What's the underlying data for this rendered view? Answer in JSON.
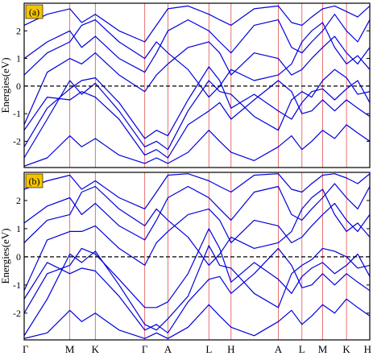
{
  "chart_data": [
    {
      "type": "line",
      "panel_label": "(a)",
      "ylabel": "Energies(eV)",
      "ylim": [
        -2.95,
        3.0
      ],
      "y_ticks": [
        -2,
        -1,
        0,
        1,
        2
      ],
      "fermi_level": 0,
      "kpath_labels": [
        "Γ",
        "M",
        "K",
        "Γ",
        "A",
        "L",
        "H",
        "A",
        "L",
        "M",
        "K",
        "H"
      ],
      "kpath_positions": [
        0,
        0.1588,
        0.2475,
        0.4194,
        0.5,
        0.6425,
        0.7196,
        0.8838,
        0.9661,
        1.0381,
        1.1211,
        1.2021
      ],
      "band_color": "#0000dd",
      "kline_color": "#e05050",
      "series": [
        {
          "x": [
            0,
            0.08,
            0.1588,
            0.2,
            0.2475,
            0.33,
            0.4194,
            0.46,
            0.5,
            0.57,
            0.6425,
            0.68,
            0.7196,
            0.8,
            0.8838,
            0.93,
            0.9661,
            1.0,
            1.0381,
            1.08,
            1.1211,
            1.16,
            1.2021
          ],
          "y": [
            -2.6,
            -1.2,
            0.2,
            -0.3,
            0.1,
            -0.9,
            -2.2,
            -2.0,
            -2.3,
            -0.9,
            0.2,
            -0.2,
            -0.3,
            -1.1,
            -1.6,
            -0.5,
            -0.2,
            -0.4,
            0.2,
            0.6,
            0.3,
            -0.3,
            -0.2
          ]
        },
        {
          "x": [
            0,
            0.08,
            0.1588,
            0.2,
            0.2475,
            0.33,
            0.4194,
            0.46,
            0.5,
            0.57,
            0.6425,
            0.68,
            0.7196,
            0.8,
            0.8838,
            0.93,
            0.9661,
            1.0,
            1.0381,
            1.08,
            1.1211,
            1.16,
            1.2021
          ],
          "y": [
            -2.2,
            -0.8,
            -0.1,
            0.2,
            0.3,
            -0.6,
            -1.9,
            -1.6,
            -1.8,
            -0.5,
            0.7,
            0.2,
            -0.8,
            -0.3,
            -0.9,
            -1.2,
            -0.6,
            -0.2,
            -0.1,
            -0.5,
            -0.1,
            0.2,
            -0.6
          ]
        },
        {
          "x": [
            0,
            0.08,
            0.1588,
            0.2,
            0.2475,
            0.33,
            0.4194,
            0.46,
            0.5,
            0.57,
            0.6425,
            0.68,
            0.7196,
            0.8,
            0.8838,
            0.93,
            0.9661,
            1.0,
            1.0381,
            1.08,
            1.1211,
            1.16,
            1.2021
          ],
          "y": [
            -1.6,
            -0.4,
            -0.5,
            -0.2,
            -0.4,
            -1.2,
            -2.5,
            -2.3,
            -2.6,
            -1.4,
            -0.9,
            -0.6,
            -1.2,
            -0.5,
            0.2,
            -0.2,
            -1.0,
            -0.9,
            -0.5,
            -0.9,
            -0.5,
            -0.8,
            -1.1
          ]
        },
        {
          "x": [
            0,
            0.08,
            0.1588,
            0.2,
            0.2475,
            0.33,
            0.4194,
            0.46,
            0.5,
            0.57,
            0.6425,
            0.68,
            0.7196,
            0.8,
            0.8838,
            0.93,
            0.9661,
            1.0,
            1.0381,
            1.08,
            1.1211,
            1.16,
            1.2021
          ],
          "y": [
            -1.4,
            0.5,
            1.0,
            0.8,
            1.2,
            0.4,
            -0.2,
            0.4,
            0.8,
            1.4,
            1.6,
            1.2,
            0.4,
            1.2,
            1.0,
            0.4,
            0.6,
            1.0,
            1.4,
            1.8,
            1.2,
            0.8,
            1.4
          ]
        },
        {
          "x": [
            0,
            0.08,
            0.1588,
            0.2,
            0.2475,
            0.33,
            0.4194,
            0.46,
            0.5,
            0.57,
            0.6425,
            0.68,
            0.7196,
            0.8,
            0.8838,
            0.93,
            0.9661,
            1.0,
            1.0381,
            1.08,
            1.1211,
            1.16,
            1.2021
          ],
          "y": [
            1.0,
            1.6,
            2.0,
            1.4,
            1.8,
            1.0,
            0.5,
            1.2,
            2.0,
            2.4,
            2.0,
            1.6,
            1.2,
            2.2,
            2.4,
            1.4,
            1.2,
            1.6,
            2.0,
            2.6,
            2.0,
            1.6,
            2.4
          ]
        },
        {
          "x": [
            0,
            0.08,
            0.1588,
            0.2,
            0.2475,
            0.33,
            0.4194,
            0.46,
            0.5,
            0.57,
            0.6425,
            0.68,
            0.7196,
            0.8,
            0.8838,
            0.93,
            0.9661,
            1.0,
            1.0381,
            1.08,
            1.1211,
            1.16,
            1.2021
          ],
          "y": [
            2.2,
            2.6,
            2.8,
            2.3,
            2.6,
            2.0,
            1.6,
            2.2,
            2.8,
            2.9,
            2.6,
            2.4,
            2.2,
            2.8,
            2.9,
            2.3,
            2.2,
            2.5,
            2.8,
            2.9,
            2.7,
            2.5,
            2.9
          ]
        },
        {
          "x": [
            0,
            0.08,
            0.1588,
            0.2,
            0.2475,
            0.33,
            0.4194,
            0.46,
            0.5,
            0.57,
            0.6425,
            0.68,
            0.7196,
            0.8,
            0.8838,
            0.93,
            0.9661,
            1.0,
            1.0381,
            1.08,
            1.1211,
            1.16,
            1.2021
          ],
          "y": [
            -2.9,
            -2.6,
            -1.8,
            -2.2,
            -1.9,
            -2.5,
            -2.8,
            -2.6,
            -2.8,
            -2.4,
            -1.6,
            -2.0,
            -2.4,
            -2.7,
            -2.2,
            -1.8,
            -2.3,
            -2.0,
            -1.6,
            -1.9,
            -1.4,
            -1.7,
            -2.0
          ]
        },
        {
          "x": [
            0,
            0.08,
            0.1588,
            0.2,
            0.2475,
            0.33,
            0.4194,
            0.46,
            0.5,
            0.57,
            0.6425,
            0.68,
            0.7196,
            0.8,
            0.8838,
            0.93,
            0.9661,
            1.0,
            1.0381,
            1.08,
            1.1211,
            1.16,
            1.2021
          ],
          "y": [
            0.4,
            1.2,
            1.6,
            2.2,
            2.4,
            1.6,
            1.0,
            1.6,
            1.2,
            0.6,
            -0.4,
            0.0,
            0.6,
            0.2,
            0.4,
            0.8,
            1.6,
            2.0,
            2.3,
            1.4,
            0.8,
            1.1,
            0.6
          ]
        }
      ]
    },
    {
      "type": "line",
      "panel_label": "(b)",
      "ylabel": "Energies(eV)",
      "ylim": [
        -2.95,
        3.0
      ],
      "y_ticks": [
        -2,
        -1,
        0,
        1,
        2
      ],
      "fermi_level": 0,
      "kpath_labels": [
        "Γ",
        "M",
        "K",
        "Γ",
        "A",
        "L",
        "H",
        "A",
        "L",
        "M",
        "K",
        "H"
      ],
      "kpath_positions": [
        0,
        0.1588,
        0.2475,
        0.4194,
        0.5,
        0.6425,
        0.7196,
        0.8838,
        0.9661,
        1.0381,
        1.1211,
        1.2021
      ],
      "band_color": "#0000dd",
      "kline_color": "#e05050",
      "series": [
        {
          "x": [
            0,
            0.08,
            0.1588,
            0.2,
            0.2475,
            0.33,
            0.4194,
            0.46,
            0.5,
            0.57,
            0.6425,
            0.68,
            0.7196,
            0.8,
            0.8838,
            0.93,
            0.9661,
            1.0,
            1.0381,
            1.08,
            1.1211,
            1.16,
            1.2021
          ],
          "y": [
            -2.8,
            -1.5,
            0.1,
            -0.2,
            0.2,
            -1.0,
            -2.4,
            -2.6,
            -2.2,
            -1.4,
            0.4,
            -0.3,
            -0.4,
            -1.3,
            -1.8,
            -0.6,
            -0.3,
            -0.1,
            0.3,
            0.2,
            0.0,
            -0.4,
            -0.3
          ]
        },
        {
          "x": [
            0,
            0.08,
            0.1588,
            0.2,
            0.2475,
            0.33,
            0.4194,
            0.46,
            0.5,
            0.57,
            0.6425,
            0.68,
            0.7196,
            0.8,
            0.8838,
            0.93,
            0.9661,
            1.0,
            1.0381,
            1.08,
            1.1211,
            1.16,
            1.2021
          ],
          "y": [
            -2.0,
            -0.6,
            -0.3,
            0.3,
            0.1,
            -0.8,
            -1.8,
            -1.8,
            -1.6,
            -0.6,
            1.0,
            0.3,
            -0.9,
            -0.2,
            -0.8,
            -1.3,
            -0.7,
            -0.4,
            -0.2,
            -0.6,
            -0.3,
            0.1,
            -0.7
          ]
        },
        {
          "x": [
            0,
            0.08,
            0.1588,
            0.2,
            0.2475,
            0.33,
            0.4194,
            0.46,
            0.5,
            0.57,
            0.6425,
            0.68,
            0.7196,
            0.8,
            0.8838,
            0.93,
            0.9661,
            1.0,
            1.0381,
            1.08,
            1.1211,
            1.16,
            1.2021
          ],
          "y": [
            -1.5,
            -0.2,
            -0.6,
            -0.4,
            -0.5,
            -1.4,
            -2.6,
            -2.4,
            -2.7,
            -1.6,
            -0.8,
            -0.7,
            -1.3,
            -0.6,
            0.3,
            -0.3,
            -1.1,
            -1.0,
            -0.6,
            -1.0,
            -0.6,
            -0.9,
            -1.2
          ]
        },
        {
          "x": [
            0,
            0.08,
            0.1588,
            0.2,
            0.2475,
            0.33,
            0.4194,
            0.46,
            0.5,
            0.57,
            0.6425,
            0.68,
            0.7196,
            0.8,
            0.8838,
            0.93,
            0.9661,
            1.0,
            1.0381,
            1.08,
            1.1211,
            1.16,
            1.2021
          ],
          "y": [
            -1.2,
            0.6,
            0.9,
            0.9,
            1.1,
            0.3,
            -0.3,
            0.5,
            0.9,
            1.5,
            1.7,
            1.3,
            0.5,
            1.3,
            1.1,
            0.5,
            0.7,
            1.1,
            1.5,
            1.9,
            1.3,
            0.9,
            1.5
          ]
        },
        {
          "x": [
            0,
            0.08,
            0.1588,
            0.2,
            0.2475,
            0.33,
            0.4194,
            0.46,
            0.5,
            0.57,
            0.6425,
            0.68,
            0.7196,
            0.8,
            0.8838,
            0.93,
            0.9661,
            1.0,
            1.0381,
            1.08,
            1.1211,
            1.16,
            1.2021
          ],
          "y": [
            1.2,
            1.8,
            2.1,
            1.5,
            1.9,
            1.1,
            0.6,
            1.3,
            2.1,
            2.5,
            2.1,
            1.7,
            1.3,
            2.3,
            2.5,
            1.5,
            1.3,
            1.7,
            2.1,
            2.6,
            2.1,
            1.7,
            2.5
          ]
        },
        {
          "x": [
            0,
            0.08,
            0.1588,
            0.2,
            0.2475,
            0.33,
            0.4194,
            0.46,
            0.5,
            0.57,
            0.6425,
            0.68,
            0.7196,
            0.8,
            0.8838,
            0.93,
            0.9661,
            1.0,
            1.0381,
            1.08,
            1.1211,
            1.16,
            1.2021
          ],
          "y": [
            2.4,
            2.7,
            2.9,
            2.4,
            2.7,
            2.1,
            1.7,
            2.3,
            2.9,
            2.95,
            2.7,
            2.5,
            2.3,
            2.9,
            2.95,
            2.4,
            2.3,
            2.6,
            2.9,
            2.95,
            2.8,
            2.6,
            2.95
          ]
        },
        {
          "x": [
            0,
            0.08,
            0.1588,
            0.2,
            0.2475,
            0.33,
            0.4194,
            0.46,
            0.5,
            0.57,
            0.6425,
            0.68,
            0.7196,
            0.8,
            0.8838,
            0.93,
            0.9661,
            1.0,
            1.0381,
            1.08,
            1.1211,
            1.16,
            1.2021
          ],
          "y": [
            -2.9,
            -2.7,
            -1.9,
            -2.3,
            -2.0,
            -2.6,
            -2.9,
            -2.7,
            -2.9,
            -2.5,
            -1.7,
            -2.1,
            -2.5,
            -2.8,
            -2.3,
            -1.9,
            -2.4,
            -2.1,
            -1.7,
            -2.0,
            -1.5,
            -1.8,
            -2.1
          ]
        },
        {
          "x": [
            0,
            0.08,
            0.1588,
            0.2,
            0.2475,
            0.33,
            0.4194,
            0.46,
            0.5,
            0.57,
            0.6425,
            0.68,
            0.7196,
            0.8,
            0.8838,
            0.93,
            0.9661,
            1.0,
            1.0381,
            1.08,
            1.1211,
            1.16,
            1.2021
          ],
          "y": [
            0.5,
            1.3,
            1.5,
            2.3,
            2.5,
            1.7,
            1.1,
            1.7,
            1.3,
            0.7,
            -0.3,
            0.1,
            0.7,
            0.3,
            0.5,
            0.9,
            1.7,
            2.1,
            2.4,
            1.5,
            0.9,
            1.2,
            0.7
          ]
        }
      ]
    }
  ]
}
